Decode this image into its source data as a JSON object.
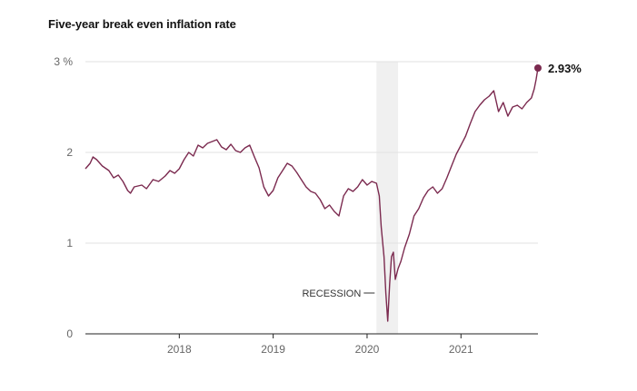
{
  "title": "Five-year break even inflation rate",
  "colors": {
    "line": "#7b2a4f",
    "grid": "#e2e2e2",
    "recession_band": "#f0f0f0"
  },
  "chart_data": {
    "type": "line",
    "title": "Five-year break even inflation rate",
    "xlabel": "",
    "ylabel": "",
    "ylim": [
      0,
      3
    ],
    "xlim": [
      2017.0,
      2021.82
    ],
    "y_ticks": [
      {
        "value": 0,
        "label": "0"
      },
      {
        "value": 1,
        "label": "1"
      },
      {
        "value": 2,
        "label": "2"
      },
      {
        "value": 3,
        "label": "3 %"
      }
    ],
    "x_ticks": [
      {
        "value": 2018,
        "label": "2018"
      },
      {
        "value": 2019,
        "label": "2019"
      },
      {
        "value": 2020,
        "label": "2020"
      },
      {
        "value": 2021,
        "label": "2021"
      }
    ],
    "grid": true,
    "recession": {
      "start": 2020.1,
      "end": 2020.33,
      "label": "RECESSION"
    },
    "end_label": "2.93%",
    "series": [
      {
        "x": [
          2017.0,
          2017.05,
          2017.08,
          2017.12,
          2017.18,
          2017.25,
          2017.3,
          2017.35,
          2017.4,
          2017.45,
          2017.48,
          2017.52,
          2017.6,
          2017.65,
          2017.72,
          2017.78,
          2017.85,
          2017.9,
          2017.95,
          2018.0,
          2018.05,
          2018.1,
          2018.15,
          2018.2,
          2018.25,
          2018.3,
          2018.35,
          2018.4,
          2018.45,
          2018.5,
          2018.55,
          2018.6,
          2018.65,
          2018.7,
          2018.75,
          2018.8,
          2018.85,
          2018.9,
          2018.95,
          2019.0,
          2019.05,
          2019.1,
          2019.15,
          2019.2,
          2019.25,
          2019.3,
          2019.35,
          2019.4,
          2019.45,
          2019.5,
          2019.55,
          2019.6,
          2019.65,
          2019.7,
          2019.75,
          2019.8,
          2019.85,
          2019.9,
          2019.95,
          2020.0,
          2020.05,
          2020.1,
          2020.13,
          2020.15,
          2020.18,
          2020.2,
          2020.22,
          2020.24,
          2020.26,
          2020.28,
          2020.3,
          2020.33,
          2020.36,
          2020.4,
          2020.45,
          2020.5,
          2020.55,
          2020.6,
          2020.65,
          2020.7,
          2020.75,
          2020.8,
          2020.85,
          2020.9,
          2020.95,
          2021.0,
          2021.05,
          2021.1,
          2021.15,
          2021.2,
          2021.25,
          2021.3,
          2021.35,
          2021.4,
          2021.45,
          2021.5,
          2021.55,
          2021.6,
          2021.65,
          2021.7,
          2021.75,
          2021.78,
          2021.8,
          2021.82
        ],
        "values": [
          1.82,
          1.88,
          1.95,
          1.92,
          1.85,
          1.8,
          1.72,
          1.75,
          1.68,
          1.58,
          1.55,
          1.62,
          1.64,
          1.6,
          1.7,
          1.68,
          1.74,
          1.8,
          1.77,
          1.82,
          1.92,
          2.0,
          1.96,
          2.08,
          2.05,
          2.1,
          2.12,
          2.14,
          2.06,
          2.03,
          2.09,
          2.02,
          2.0,
          2.05,
          2.08,
          1.95,
          1.83,
          1.62,
          1.52,
          1.58,
          1.72,
          1.8,
          1.88,
          1.85,
          1.78,
          1.7,
          1.62,
          1.57,
          1.55,
          1.48,
          1.38,
          1.42,
          1.35,
          1.3,
          1.52,
          1.6,
          1.57,
          1.62,
          1.7,
          1.64,
          1.68,
          1.66,
          1.52,
          1.18,
          0.85,
          0.45,
          0.14,
          0.55,
          0.85,
          0.9,
          0.6,
          0.72,
          0.8,
          0.95,
          1.1,
          1.3,
          1.38,
          1.5,
          1.58,
          1.62,
          1.55,
          1.6,
          1.72,
          1.85,
          1.98,
          2.08,
          2.18,
          2.32,
          2.45,
          2.52,
          2.58,
          2.62,
          2.68,
          2.45,
          2.55,
          2.4,
          2.5,
          2.52,
          2.48,
          2.55,
          2.6,
          2.7,
          2.8,
          2.93
        ]
      }
    ]
  }
}
